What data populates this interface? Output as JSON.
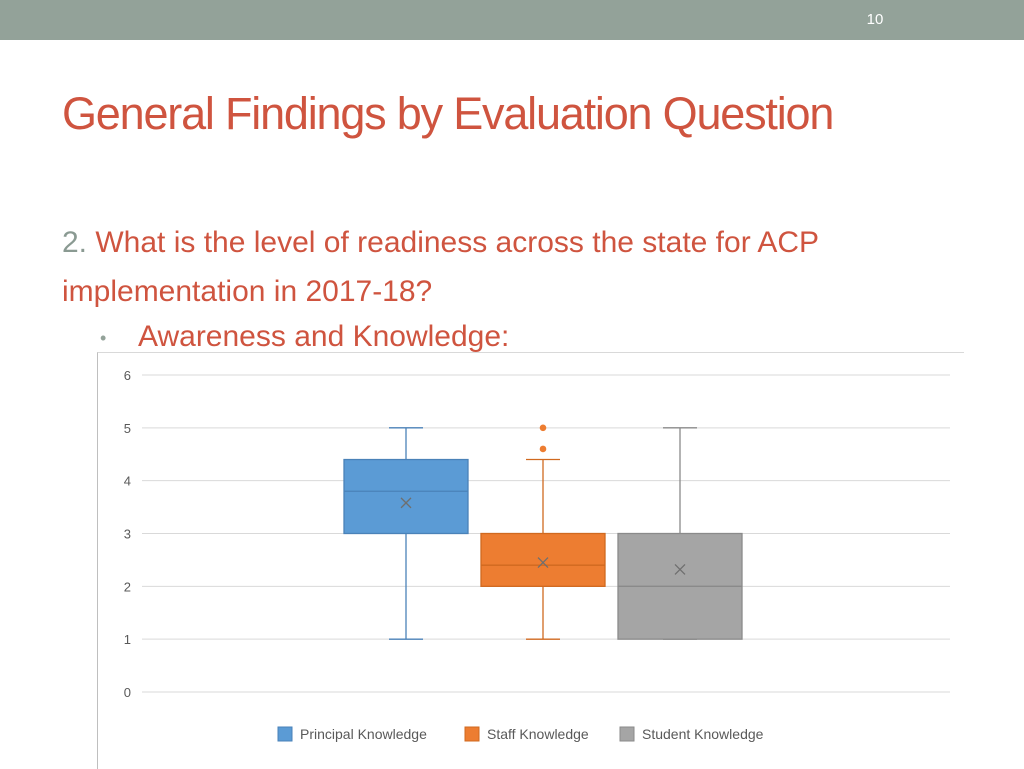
{
  "slide": {
    "number": "10",
    "title": "General Findings by Evaluation Question",
    "question_number": "2.",
    "question_text": " What is the level of readiness across the state for ACP implementation in 2017-18?",
    "bullet": "Awareness and Knowledge:"
  },
  "chart_data": {
    "type": "box",
    "ylim": [
      0,
      6
    ],
    "yticks": [
      0,
      1,
      2,
      3,
      4,
      5,
      6
    ],
    "grid": true,
    "legend_position": "bottom",
    "series": [
      {
        "name": "Principal Knowledge",
        "color": "#5b9bd5",
        "stroke": "#4a82b8",
        "min": 1,
        "q1": 3,
        "median": 3.8,
        "q3": 4.4,
        "max": 5,
        "mean": 3.58,
        "outliers": []
      },
      {
        "name": "Staff Knowledge",
        "color": "#ed7d31",
        "stroke": "#d0691f",
        "min": 1,
        "q1": 2,
        "median": 2.4,
        "q3": 3,
        "max": 4.4,
        "mean": 2.45,
        "outliers": [
          4.6,
          5
        ]
      },
      {
        "name": "Student Knowledge",
        "color": "#a5a5a5",
        "stroke": "#8a8a8a",
        "min": 1,
        "q1": 1,
        "median": 2,
        "q3": 3,
        "max": 5,
        "mean": 2.32,
        "outliers": []
      }
    ]
  }
}
